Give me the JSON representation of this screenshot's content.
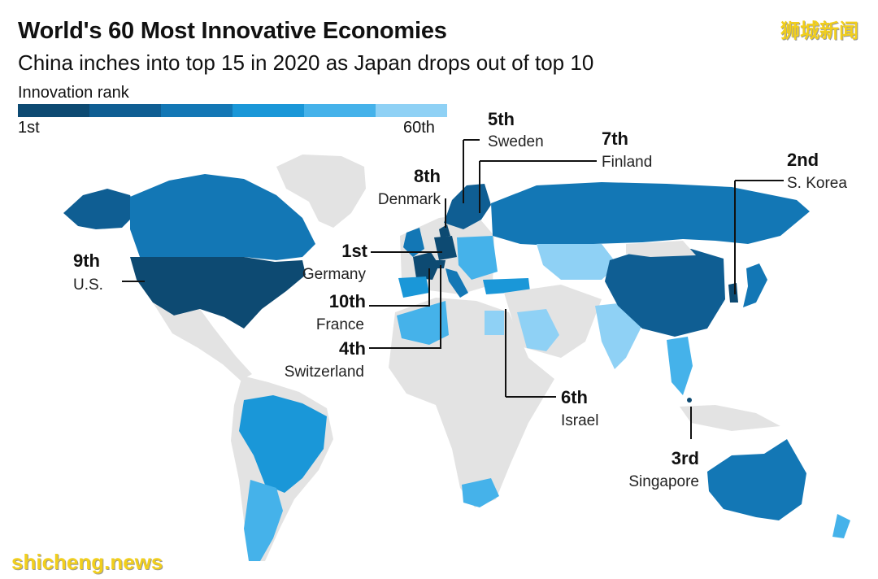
{
  "header": {
    "title": "World's 60 Most Innovative Economies",
    "subtitle": "China inches into top 15 in 2020 as Japan drops out of top 10"
  },
  "legend": {
    "title": "Innovation rank",
    "min_label": "1st",
    "max_label": "60th",
    "colors": [
      "#0d4a72",
      "#0f5e93",
      "#1377b5",
      "#1a97d8",
      "#45b2ea",
      "#8fd1f5"
    ]
  },
  "map": {
    "no_data_color": "#e3e3e3",
    "callouts": [
      {
        "id": "germany",
        "rank": "1st",
        "country": "Germany"
      },
      {
        "id": "korea",
        "rank": "2nd",
        "country": "S. Korea"
      },
      {
        "id": "singapore",
        "rank": "3rd",
        "country": "Singapore"
      },
      {
        "id": "switzerland",
        "rank": "4th",
        "country": "Switzerland"
      },
      {
        "id": "sweden",
        "rank": "5th",
        "country": "Sweden"
      },
      {
        "id": "israel",
        "rank": "6th",
        "country": "Israel"
      },
      {
        "id": "finland",
        "rank": "7th",
        "country": "Finland"
      },
      {
        "id": "denmark",
        "rank": "8th",
        "country": "Denmark"
      },
      {
        "id": "us",
        "rank": "9th",
        "country": "U.S."
      },
      {
        "id": "france",
        "rank": "10th",
        "country": "France"
      }
    ]
  },
  "watermarks": {
    "top": "狮城新闻",
    "bottom": "shicheng.news"
  }
}
